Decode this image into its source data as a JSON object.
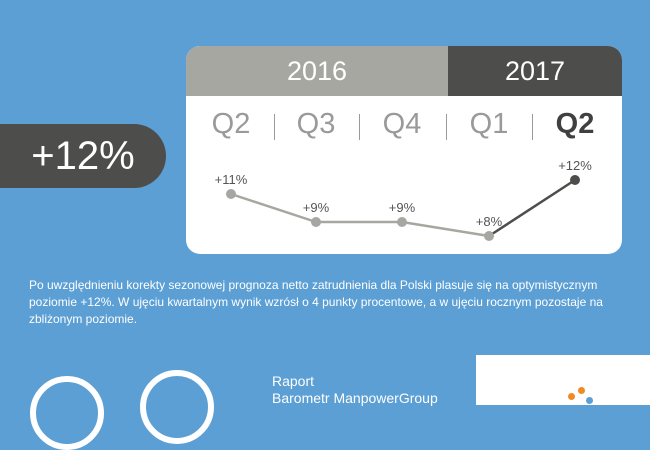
{
  "years": [
    "2016",
    "2017"
  ],
  "headline": "+12%",
  "description": "Po uwzględnieniu korekty sezonowej prognoza netto zatrudnienia dla Polski plasuje się na optymistycznym poziomie +12%. W ujęciu kwartalnym wynik wzrósł o 4 punkty procentowe, a w ujęciu rocznym pozostaje na zbliżonym poziomie.",
  "report": {
    "line1": "Raport",
    "line2": "Barometr ManpowerGroup"
  },
  "chart_data": {
    "type": "line",
    "categories": [
      "Q2",
      "Q3",
      "Q4",
      "Q1",
      "Q2"
    ],
    "series": [
      {
        "values": [
          11,
          9,
          9,
          8,
          12
        ]
      }
    ],
    "data_labels": [
      "+11%",
      "+9%",
      "+9%",
      "+8%",
      "+12%"
    ],
    "active_category_index": 4,
    "colors": {
      "history": "#a7a7a2",
      "latest": "#4d4d4b"
    }
  }
}
